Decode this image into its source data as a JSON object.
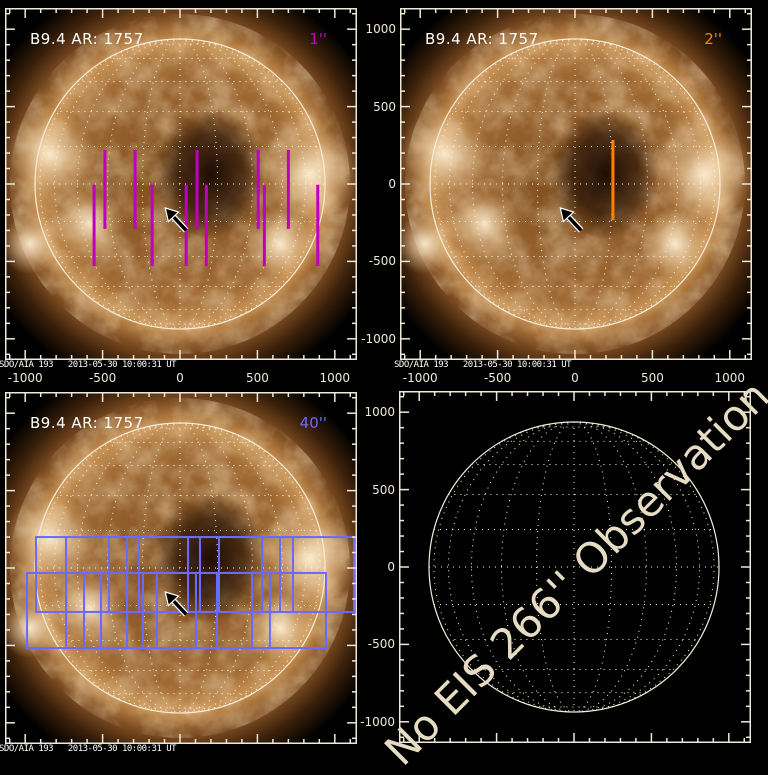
{
  "panels": [
    {
      "id": "top-left",
      "label": "B9.4 AR: 1757",
      "slit_label": "1''",
      "slit_color": "#c000c0",
      "footer": "SDO/AIA 193   2013-05-30 10:00:31 UT",
      "x_tick_labels": [
        "-1000",
        "-500",
        "0",
        "500",
        "1000"
      ],
      "y_tick_labels": [],
      "image": "AIA 193 solar disk",
      "overlay_type": "slits",
      "slits_arcsec": [
        {
          "x": -485,
          "y1": 220,
          "y2": -290
        },
        {
          "x": -290,
          "y1": 220,
          "y2": -290
        },
        {
          "x": 110,
          "y1": 220,
          "y2": -290
        },
        {
          "x": 505,
          "y1": 220,
          "y2": -290
        },
        {
          "x": 700,
          "y1": 220,
          "y2": -290
        },
        {
          "x": -555,
          "y1": -5,
          "y2": -530
        },
        {
          "x": -180,
          "y1": -5,
          "y2": -530
        },
        {
          "x": 40,
          "y1": -5,
          "y2": -530
        },
        {
          "x": 170,
          "y1": -5,
          "y2": -530
        },
        {
          "x": 545,
          "y1": -5,
          "y2": -530
        },
        {
          "x": 890,
          "y1": -5,
          "y2": -530
        }
      ]
    },
    {
      "id": "top-right",
      "label": "B9.4 AR: 1757",
      "slit_label": "2''",
      "slit_color": "#ff7f00",
      "footer": "SDO/AIA 193   2013-05-30 10:00:31 UT",
      "x_tick_labels": [
        "-1000",
        "-500",
        "0",
        "500",
        "1000"
      ],
      "y_tick_labels": [
        "1000",
        "500",
        "0",
        "-500",
        "-1000"
      ],
      "image": "AIA 193 solar disk",
      "overlay_type": "slits",
      "slits_arcsec": [
        {
          "x": 245,
          "y1": 284,
          "y2": -233
        }
      ]
    },
    {
      "id": "bottom-left",
      "label": "B9.4 AR: 1757",
      "slit_label": "40''",
      "slit_color": "#6a6aff",
      "footer": "SDO/AIA 193   2013-05-30 10:00:31 UT",
      "x_tick_labels": [],
      "y_tick_labels": [],
      "image": "AIA 193 solar disk",
      "overlay_type": "rasters",
      "rasters_arcsec": [
        {
          "x1": -930,
          "x2": -736,
          "y1": 200,
          "y2": -284
        },
        {
          "x1": -736,
          "x2": -342,
          "y1": 200,
          "y2": -284
        },
        {
          "x1": -459,
          "x2": -265,
          "y1": 200,
          "y2": -284
        },
        {
          "x1": -342,
          "x2": 52,
          "y1": 200,
          "y2": -284
        },
        {
          "x1": -265,
          "x2": 129,
          "y1": 200,
          "y2": -284
        },
        {
          "x1": 52,
          "x2": 252,
          "y1": 200,
          "y2": -284
        },
        {
          "x1": 129,
          "x2": 530,
          "y1": 200,
          "y2": -284
        },
        {
          "x1": 252,
          "x2": 646,
          "y1": 200,
          "y2": -284
        },
        {
          "x1": 530,
          "x2": 730,
          "y1": 200,
          "y2": -284
        },
        {
          "x1": 646,
          "x2": 1124,
          "y1": 200,
          "y2": -284
        },
        {
          "x1": -988,
          "x2": -620,
          "y1": -32,
          "y2": -517
        },
        {
          "x1": -736,
          "x2": -510,
          "y1": -32,
          "y2": -517
        },
        {
          "x1": -620,
          "x2": -342,
          "y1": -32,
          "y2": -517
        },
        {
          "x1": -510,
          "x2": -239,
          "y1": -32,
          "y2": -517
        },
        {
          "x1": -342,
          "x2": -149,
          "y1": -32,
          "y2": -517
        },
        {
          "x1": -239,
          "x2": 103,
          "y1": -32,
          "y2": -517
        },
        {
          "x1": -149,
          "x2": 239,
          "y1": -32,
          "y2": -517
        },
        {
          "x1": 103,
          "x2": 465,
          "y1": -32,
          "y2": -517
        },
        {
          "x1": 239,
          "x2": 581,
          "y1": -32,
          "y2": -517
        },
        {
          "x1": 465,
          "x2": 943,
          "y1": -32,
          "y2": -517
        }
      ]
    },
    {
      "id": "bottom-right",
      "label": "",
      "slit_label": "",
      "footer": "",
      "x_tick_labels": [],
      "y_tick_labels": [
        "1000",
        "500",
        "0",
        "-500",
        "-1000"
      ],
      "image": "none",
      "overlay_type": "none",
      "message": "No EIS 266'' Observation"
    }
  ],
  "arrow_arcsec": {
    "tail": [
      40,
      -300
    ],
    "tip": [
      -95,
      -155
    ]
  },
  "axis_range_arcsec": [
    -1130,
    1140
  ],
  "colors": {
    "frame": "#eee8d8",
    "grid": "#fff6e0"
  }
}
